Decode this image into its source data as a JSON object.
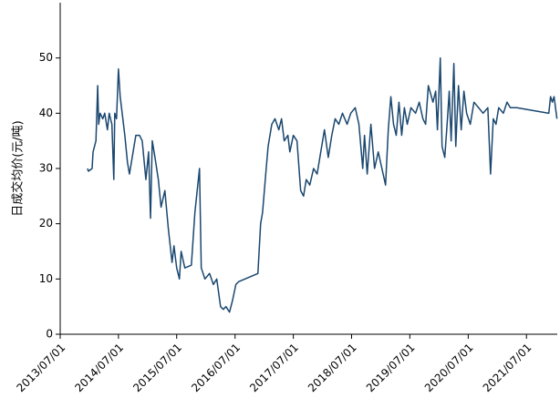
{
  "chart_data": {
    "type": "line",
    "ylabel": "日成交均价(元/吨)",
    "color": "#1a476f",
    "xlim": [
      "2013/07/01",
      "2022/01/10"
    ],
    "xticks": [
      "2013/07/01",
      "2014/07/01",
      "2015/07/01",
      "2016/07/01",
      "2017/07/01",
      "2018/07/01",
      "2019/07/01",
      "2020/07/01",
      "2021/07/01"
    ],
    "ylim": [
      0,
      60
    ],
    "yticks": [
      0,
      10,
      20,
      30,
      40,
      50
    ],
    "x": [
      "2013/12/19",
      "2013/12/25",
      "2014/01/17",
      "2014/01/23",
      "2014/02/10",
      "2014/02/21",
      "2014/02/27",
      "2014/03/08",
      "2014/03/25",
      "2014/04/06",
      "2014/04/23",
      "2014/05/04",
      "2014/05/21",
      "2014/06/02",
      "2014/06/08",
      "2014/06/19",
      "2014/07/01",
      "2014/07/12",
      "2014/08/10",
      "2014/08/27",
      "2014/09/08",
      "2014/10/01",
      "2014/10/18",
      "2014/11/10",
      "2014/11/27",
      "2014/12/20",
      "2015/01/06",
      "2015/01/18",
      "2015/01/29",
      "2015/02/15",
      "2015/03/08",
      "2015/03/25",
      "2015/04/18",
      "2015/05/10",
      "2015/06/02",
      "2015/06/14",
      "2015/07/01",
      "2015/07/18",
      "2015/07/29",
      "2015/08/21",
      "2015/10/01",
      "2015/10/23",
      "2015/11/21",
      "2015/12/02",
      "2015/12/25",
      "2016/01/23",
      "2016/02/16",
      "2016/03/08",
      "2016/04/01",
      "2016/04/18",
      "2016/05/05",
      "2016/05/27",
      "2016/06/14",
      "2016/06/25",
      "2016/07/06",
      "2016/07/23",
      "2016/11/21",
      "2016/12/08",
      "2016/12/20",
      "2017/01/12",
      "2017/01/24",
      "2017/02/16",
      "2017/03/08",
      "2017/04/01",
      "2017/04/18",
      "2017/05/05",
      "2017/05/28",
      "2017/06/09",
      "2017/07/01",
      "2017/07/24",
      "2017/08/16",
      "2017/09/03",
      "2017/09/20",
      "2017/10/12",
      "2017/11/05",
      "2017/11/27",
      "2017/12/20",
      "2018/01/12",
      "2018/02/05",
      "2018/02/27",
      "2018/03/20",
      "2018/04/12",
      "2018/05/05",
      "2018/06/03",
      "2018/06/26",
      "2018/07/24",
      "2018/08/16",
      "2018/09/09",
      "2018/09/20",
      "2018/10/07",
      "2018/10/30",
      "2018/11/22",
      "2018/12/15",
      "2019/01/07",
      "2019/01/30",
      "2019/02/16",
      "2019/03/04",
      "2019/03/21",
      "2019/04/07",
      "2019/04/24",
      "2019/05/11",
      "2019/05/28",
      "2019/06/15",
      "2019/07/08",
      "2019/08/06",
      "2019/08/29",
      "2019/09/21",
      "2019/10/08",
      "2019/10/25",
      "2019/11/23",
      "2019/12/10",
      "2019/12/21",
      "2020/01/08",
      "2020/01/19",
      "2020/02/05",
      "2020/02/22",
      "2020/03/04",
      "2020/03/16",
      "2020/04/02",
      "2020/04/14",
      "2020/05/01",
      "2020/05/18",
      "2020/06/04",
      "2020/06/21",
      "2020/07/14",
      "2020/08/06",
      "2020/09/04",
      "2020/10/02",
      "2020/11/01",
      "2020/11/18",
      "2020/12/05",
      "2020/12/22",
      "2021/01/08",
      "2021/02/06",
      "2021/03/01",
      "2021/03/22",
      "2021/05/01",
      "2021/11/18",
      "2021/11/29",
      "2021/12/10",
      "2021/12/21",
      "2022/01/08"
    ],
    "values": [
      30,
      29.5,
      30,
      33,
      35,
      45,
      38,
      40,
      39,
      40,
      37,
      40,
      38,
      28,
      40,
      39,
      48,
      43,
      36,
      31,
      29,
      33,
      36,
      36,
      35,
      28,
      33,
      21,
      35,
      32,
      28,
      23,
      26,
      19,
      13,
      16,
      12,
      10,
      15,
      12,
      12.5,
      22,
      30,
      12,
      10,
      11,
      9,
      10,
      5,
      4.5,
      5,
      4,
      6,
      7.5,
      9,
      9.5,
      11,
      20,
      22,
      30,
      34,
      38,
      39,
      37,
      39,
      35,
      36,
      33,
      36,
      35,
      26,
      25,
      28,
      27,
      30,
      29,
      33,
      37,
      32,
      36,
      39,
      38,
      40,
      38,
      40,
      41,
      38,
      30,
      36,
      29,
      38,
      30,
      33,
      30,
      27,
      37,
      43,
      38,
      36,
      42,
      36,
      41,
      38,
      41,
      40,
      42,
      39,
      38,
      45,
      42,
      44,
      37,
      50,
      34,
      32,
      39,
      44,
      35,
      49,
      34,
      45,
      37,
      44,
      40,
      38,
      42,
      41,
      40,
      41,
      29,
      39,
      38,
      41,
      40,
      42,
      41,
      41,
      40,
      43,
      42,
      43,
      39
    ]
  }
}
